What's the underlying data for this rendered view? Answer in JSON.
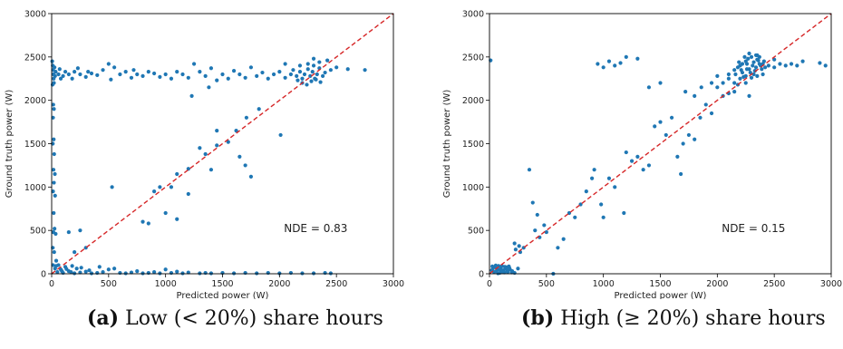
{
  "captions": [
    {
      "tag": "(a)",
      "text": "Low (< 20%) share hours"
    },
    {
      "tag": "(b)",
      "text": "High (≥ 20%) share hours"
    }
  ],
  "colors": {
    "points": "#1f77b4",
    "diagonal": "#d62728",
    "axes": "#000000"
  },
  "chart_data": [
    {
      "type": "scatter",
      "xlabel": "Predicted power (W)",
      "ylabel": "Ground truth power (W)",
      "xlim": [
        0,
        3000
      ],
      "ylim": [
        0,
        3000
      ],
      "xticks": [
        0,
        500,
        1000,
        1500,
        2000,
        2500,
        3000
      ],
      "yticks": [
        0,
        500,
        1000,
        1500,
        2000,
        2500,
        3000
      ],
      "reference_line": {
        "from": [
          0,
          0
        ],
        "to": [
          3000,
          3000
        ],
        "style": "dashed"
      },
      "annotation": {
        "text": "NDE = 0.83",
        "x": 2000,
        "y": 480
      },
      "points": [
        [
          5,
          2450
        ],
        [
          10,
          2400
        ],
        [
          12,
          2350
        ],
        [
          15,
          2300
        ],
        [
          18,
          2250
        ],
        [
          20,
          2200
        ],
        [
          25,
          2380
        ],
        [
          30,
          2280
        ],
        [
          35,
          2330
        ],
        [
          8,
          2180
        ],
        [
          14,
          1950
        ],
        [
          20,
          1900
        ],
        [
          12,
          1800
        ],
        [
          18,
          1550
        ],
        [
          10,
          1500
        ],
        [
          22,
          1380
        ],
        [
          16,
          1200
        ],
        [
          28,
          1150
        ],
        [
          20,
          1050
        ],
        [
          12,
          950
        ],
        [
          30,
          900
        ],
        [
          18,
          700
        ],
        [
          25,
          520
        ],
        [
          15,
          480
        ],
        [
          35,
          460
        ],
        [
          10,
          300
        ],
        [
          22,
          250
        ],
        [
          40,
          150
        ],
        [
          12,
          100
        ],
        [
          30,
          60
        ],
        [
          60,
          2300
        ],
        [
          80,
          2250
        ],
        [
          100,
          2280
        ],
        [
          150,
          2300
        ],
        [
          200,
          2330
        ],
        [
          250,
          2300
        ],
        [
          300,
          2270
        ],
        [
          350,
          2310
        ],
        [
          400,
          2290
        ],
        [
          450,
          2350
        ],
        [
          500,
          2420
        ],
        [
          550,
          2380
        ],
        [
          600,
          2300
        ],
        [
          650,
          2330
        ],
        [
          700,
          2260
        ],
        [
          750,
          2300
        ],
        [
          800,
          2280
        ],
        [
          850,
          2330
        ],
        [
          900,
          2310
        ],
        [
          950,
          2270
        ],
        [
          1000,
          2300
        ],
        [
          1050,
          2250
        ],
        [
          1100,
          2330
        ],
        [
          1150,
          2300
        ],
        [
          1200,
          2260
        ],
        [
          1300,
          2330
        ],
        [
          1350,
          2280
        ],
        [
          1400,
          2370
        ],
        [
          1500,
          2300
        ],
        [
          1550,
          2250
        ],
        [
          1600,
          2340
        ],
        [
          1650,
          2300
        ],
        [
          1700,
          2260
        ],
        [
          1750,
          2380
        ],
        [
          1800,
          2280
        ],
        [
          1850,
          2320
        ],
        [
          1900,
          2250
        ],
        [
          1950,
          2300
        ],
        [
          2000,
          2330
        ],
        [
          2050,
          2260
        ],
        [
          2100,
          2300
        ],
        [
          2120,
          2350
        ],
        [
          2150,
          2280
        ],
        [
          2180,
          2330
        ],
        [
          2200,
          2250
        ],
        [
          2220,
          2300
        ],
        [
          2250,
          2360
        ],
        [
          2270,
          2280
        ],
        [
          2290,
          2330
        ],
        [
          2300,
          2400
        ],
        [
          2310,
          2250
        ],
        [
          2330,
          2300
        ],
        [
          2350,
          2370
        ],
        [
          2380,
          2280
        ],
        [
          2400,
          2320
        ],
        [
          2420,
          2460
        ],
        [
          2450,
          2350
        ],
        [
          2500,
          2380
        ],
        [
          2600,
          2360
        ],
        [
          2750,
          2350
        ],
        [
          2160,
          2230
        ],
        [
          2200,
          2200
        ],
        [
          2240,
          2180
        ],
        [
          2280,
          2220
        ],
        [
          2320,
          2240
        ],
        [
          2360,
          2210
        ],
        [
          2250,
          2420
        ],
        [
          2180,
          2400
        ],
        [
          2300,
          2480
        ],
        [
          2350,
          2440
        ],
        [
          70,
          2360
        ],
        [
          120,
          2330
        ],
        [
          180,
          2250
        ],
        [
          230,
          2370
        ],
        [
          320,
          2330
        ],
        [
          520,
          2240
        ],
        [
          720,
          2350
        ],
        [
          1250,
          2420
        ],
        [
          1450,
          2230
        ],
        [
          2050,
          2420
        ],
        [
          2010,
          1600
        ],
        [
          1820,
          1900
        ],
        [
          1710,
          1800
        ],
        [
          1620,
          1650
        ],
        [
          1550,
          1520
        ],
        [
          1450,
          1480
        ],
        [
          1350,
          1380
        ],
        [
          1200,
          1210
        ],
        [
          1100,
          1150
        ],
        [
          1050,
          1000
        ],
        [
          950,
          1000
        ],
        [
          900,
          950
        ],
        [
          1450,
          1650
        ],
        [
          1300,
          1450
        ],
        [
          1650,
          1350
        ],
        [
          1700,
          1250
        ],
        [
          1750,
          1120
        ],
        [
          1230,
          2050
        ],
        [
          1380,
          2150
        ],
        [
          1200,
          920
        ],
        [
          1000,
          700
        ],
        [
          1100,
          630
        ],
        [
          800,
          600
        ],
        [
          850,
          580
        ],
        [
          530,
          1000
        ],
        [
          250,
          500
        ],
        [
          150,
          480
        ],
        [
          300,
          300
        ],
        [
          200,
          250
        ],
        [
          1400,
          1200
        ],
        [
          50,
          20
        ],
        [
          100,
          10
        ],
        [
          150,
          30
        ],
        [
          200,
          5
        ],
        [
          250,
          15
        ],
        [
          300,
          25
        ],
        [
          350,
          5
        ],
        [
          400,
          10
        ],
        [
          450,
          20
        ],
        [
          500,
          50
        ],
        [
          550,
          60
        ],
        [
          600,
          10
        ],
        [
          650,
          5
        ],
        [
          700,
          15
        ],
        [
          750,
          30
        ],
        [
          800,
          5
        ],
        [
          850,
          10
        ],
        [
          900,
          20
        ],
        [
          950,
          5
        ],
        [
          1000,
          50
        ],
        [
          1050,
          10
        ],
        [
          1100,
          25
        ],
        [
          1150,
          5
        ],
        [
          1200,
          15
        ],
        [
          1300,
          5
        ],
        [
          1350,
          10
        ],
        [
          1400,
          5
        ],
        [
          1500,
          10
        ],
        [
          1600,
          5
        ],
        [
          1700,
          10
        ],
        [
          1800,
          5
        ],
        [
          1900,
          10
        ],
        [
          2000,
          5
        ],
        [
          2100,
          10
        ],
        [
          2200,
          5
        ],
        [
          2300,
          5
        ],
        [
          2400,
          10
        ],
        [
          2450,
          5
        ],
        [
          120,
          80
        ],
        [
          60,
          100
        ],
        [
          80,
          50
        ],
        [
          180,
          90
        ],
        [
          220,
          60
        ],
        [
          40,
          90
        ],
        [
          90,
          30
        ],
        [
          130,
          55
        ],
        [
          170,
          20
        ],
        [
          260,
          70
        ],
        [
          330,
          40
        ],
        [
          420,
          80
        ]
      ]
    },
    {
      "type": "scatter",
      "xlabel": "Predicted power (W)",
      "ylabel": "Ground truth power (W)",
      "xlim": [
        0,
        3000
      ],
      "ylim": [
        0,
        3000
      ],
      "xticks": [
        0,
        500,
        1000,
        1500,
        2000,
        2500,
        3000
      ],
      "yticks": [
        0,
        500,
        1000,
        1500,
        2000,
        2500,
        3000
      ],
      "reference_line": {
        "from": [
          0,
          0
        ],
        "to": [
          3000,
          3000
        ],
        "style": "dashed"
      },
      "annotation": {
        "text": "NDE = 0.15",
        "x": 2000,
        "y": 480
      },
      "points": [
        [
          10,
          2460
        ],
        [
          20,
          40
        ],
        [
          30,
          60
        ],
        [
          40,
          20
        ],
        [
          50,
          80
        ],
        [
          60,
          30
        ],
        [
          70,
          50
        ],
        [
          80,
          90
        ],
        [
          90,
          10
        ],
        [
          100,
          70
        ],
        [
          120,
          40
        ],
        [
          140,
          60
        ],
        [
          160,
          20
        ],
        [
          180,
          50
        ],
        [
          200,
          30
        ],
        [
          220,
          10
        ],
        [
          250,
          60
        ],
        [
          110,
          90
        ],
        [
          130,
          15
        ],
        [
          150,
          75
        ],
        [
          170,
          85
        ],
        [
          25,
          85
        ],
        [
          55,
          95
        ],
        [
          75,
          5
        ],
        [
          95,
          45
        ],
        [
          115,
          25
        ],
        [
          135,
          80
        ],
        [
          155,
          35
        ],
        [
          175,
          65
        ],
        [
          195,
          15
        ],
        [
          220,
          350
        ],
        [
          260,
          320
        ],
        [
          300,
          300
        ],
        [
          230,
          280
        ],
        [
          270,
          250
        ],
        [
          350,
          1200
        ],
        [
          380,
          820
        ],
        [
          420,
          680
        ],
        [
          400,
          500
        ],
        [
          440,
          420
        ],
        [
          480,
          560
        ],
        [
          500,
          480
        ],
        [
          600,
          300
        ],
        [
          650,
          400
        ],
        [
          560,
          0
        ],
        [
          700,
          700
        ],
        [
          750,
          650
        ],
        [
          800,
          800
        ],
        [
          850,
          950
        ],
        [
          900,
          1100
        ],
        [
          920,
          1200
        ],
        [
          980,
          800
        ],
        [
          1000,
          650
        ],
        [
          1050,
          1100
        ],
        [
          1100,
          1000
        ],
        [
          1200,
          1400
        ],
        [
          1180,
          700
        ],
        [
          1250,
          1300
        ],
        [
          1300,
          1350
        ],
        [
          1350,
          1200
        ],
        [
          1400,
          1250
        ],
        [
          1450,
          1700
        ],
        [
          1500,
          1750
        ],
        [
          1550,
          1600
        ],
        [
          1600,
          1800
        ],
        [
          1650,
          1350
        ],
        [
          1680,
          1150
        ],
        [
          1700,
          1500
        ],
        [
          1750,
          1600
        ],
        [
          1800,
          1550
        ],
        [
          1850,
          1800
        ],
        [
          1900,
          1950
        ],
        [
          1950,
          1850
        ],
        [
          1720,
          2100
        ],
        [
          1800,
          2050
        ],
        [
          1860,
          2150
        ],
        [
          1500,
          2200
        ],
        [
          1400,
          2150
        ],
        [
          2000,
          2150
        ],
        [
          2100,
          2250
        ],
        [
          950,
          2420
        ],
        [
          1000,
          2380
        ],
        [
          1050,
          2450
        ],
        [
          1100,
          2400
        ],
        [
          1200,
          2500
        ],
        [
          1300,
          2480
        ],
        [
          1150,
          2430
        ],
        [
          2050,
          2200
        ],
        [
          2100,
          2300
        ],
        [
          2150,
          2350
        ],
        [
          2200,
          2400
        ],
        [
          2250,
          2450
        ],
        [
          2300,
          2500
        ],
        [
          2350,
          2520
        ],
        [
          2180,
          2380
        ],
        [
          2220,
          2320
        ],
        [
          2260,
          2420
        ],
        [
          2280,
          2360
        ],
        [
          2320,
          2440
        ],
        [
          2340,
          2380
        ],
        [
          2360,
          2460
        ],
        [
          2380,
          2400
        ],
        [
          2400,
          2420
        ],
        [
          2420,
          2380
        ],
        [
          2200,
          2250
        ],
        [
          2160,
          2300
        ],
        [
          2240,
          2500
        ],
        [
          2270,
          2480
        ],
        [
          2310,
          2400
        ],
        [
          2330,
          2340
        ],
        [
          2370,
          2500
        ],
        [
          2390,
          2360
        ],
        [
          2210,
          2350
        ],
        [
          2250,
          2280
        ],
        [
          2290,
          2320
        ],
        [
          2350,
          2470
        ],
        [
          2190,
          2440
        ],
        [
          2150,
          2200
        ],
        [
          2230,
          2270
        ],
        [
          2340,
          2520
        ],
        [
          2280,
          2540
        ],
        [
          2410,
          2450
        ],
        [
          2320,
          2300
        ],
        [
          2260,
          2360
        ],
        [
          2370,
          2420
        ],
        [
          2300,
          2260
        ],
        [
          2220,
          2420
        ],
        [
          2450,
          2400
        ],
        [
          2500,
          2380
        ],
        [
          2550,
          2420
        ],
        [
          2600,
          2400
        ],
        [
          2650,
          2420
        ],
        [
          2700,
          2400
        ],
        [
          2750,
          2450
        ],
        [
          2900,
          2430
        ],
        [
          2950,
          2400
        ],
        [
          2500,
          2470
        ],
        [
          2100,
          2080
        ],
        [
          2050,
          2050
        ],
        [
          2150,
          2100
        ],
        [
          2280,
          2050
        ],
        [
          2400,
          2300
        ],
        [
          2350,
          2280
        ],
        [
          1950,
          2200
        ],
        [
          2000,
          2280
        ],
        [
          2250,
          2200
        ],
        [
          2180,
          2180
        ]
      ]
    }
  ]
}
